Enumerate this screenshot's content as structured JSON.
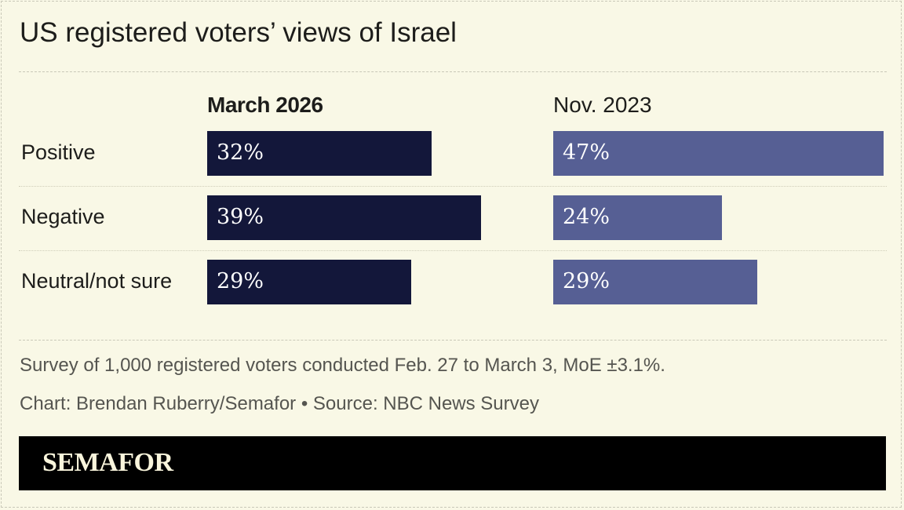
{
  "chart_data": {
    "type": "bar",
    "title": "US registered voters’ views of Israel",
    "categories": [
      "Positive",
      "Negative",
      "Neutral/not sure"
    ],
    "series": [
      {
        "name": "March 2026",
        "values": [
          32,
          39,
          29
        ],
        "color": "#13173a"
      },
      {
        "name": "Nov. 2023",
        "values": [
          47,
          24,
          29
        ],
        "color": "#565f94"
      }
    ],
    "value_suffix": "%",
    "orientation": "horizontal",
    "layout": "small-multiples",
    "grid": false
  },
  "footer": {
    "note": "Survey of 1,000 registered voters conducted Feb. 27 to March 3, MoE ±3.1%.",
    "credit": "Chart: Brendan Ruberry/Semafor • Source: NBC News Survey",
    "brand": "SEMAFOR"
  },
  "colors": {
    "background": "#f9f8e6",
    "brand_bar": "#000000"
  }
}
